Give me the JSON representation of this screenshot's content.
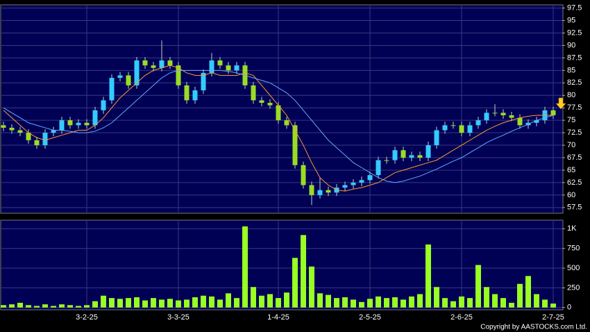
{
  "chart_data": [
    {
      "type": "candlestick",
      "open": [
        74,
        73.5,
        73,
        72.5,
        71,
        70,
        72.5,
        73,
        75,
        74,
        74.5,
        74,
        77,
        79,
        83.5,
        84,
        82,
        87,
        86,
        85.5,
        87,
        86,
        82,
        79,
        81,
        84.5,
        87,
        86,
        85,
        86,
        82,
        79,
        78.5,
        78,
        75,
        74,
        66,
        62,
        60,
        61,
        60.5,
        61.5,
        62,
        62.5,
        63,
        64,
        67,
        67,
        69,
        67.5,
        68,
        67.5,
        70,
        73,
        74,
        74,
        72.5,
        74,
        75,
        76.5,
        76.5,
        76,
        75.5,
        74,
        74.5,
        75,
        77
      ],
      "high": [
        74.7,
        74.2,
        73.7,
        73.2,
        71.7,
        73.2,
        73.7,
        75.7,
        75.7,
        75.2,
        75.2,
        77.7,
        79.7,
        84.2,
        84.7,
        84.7,
        87.7,
        87.7,
        86.7,
        91,
        87.7,
        86.7,
        82.7,
        81.7,
        85.2,
        88.5,
        87.7,
        86.7,
        86.7,
        86.7,
        82.7,
        79.7,
        79.2,
        78.7,
        75.7,
        74.7,
        66.7,
        62.7,
        63.5,
        61.7,
        62.2,
        62.7,
        63.2,
        63.7,
        64.7,
        67.7,
        67.7,
        69.7,
        69.7,
        68.7,
        68.7,
        70.7,
        73.7,
        74.7,
        74.7,
        74.7,
        74.7,
        75.7,
        77.2,
        78.2,
        77.2,
        76.7,
        76.2,
        75.2,
        75.7,
        77.7,
        77.7
      ],
      "low": [
        72.8,
        72.3,
        71.8,
        70.3,
        69.3,
        69.3,
        71.8,
        72.3,
        73.3,
        73.3,
        73.3,
        73.3,
        76.3,
        78.3,
        82.8,
        81.3,
        81.3,
        85.3,
        84.8,
        84.8,
        85.3,
        81.3,
        78.3,
        78.3,
        80.3,
        83.8,
        85.3,
        84.3,
        84.3,
        81.3,
        78.3,
        77.8,
        77.3,
        74.3,
        73.3,
        65.3,
        61.3,
        58,
        59.3,
        59.8,
        59.8,
        60.8,
        61.3,
        61.8,
        62.3,
        63.3,
        66.3,
        66.3,
        66.8,
        66.8,
        66.8,
        66.8,
        69.3,
        72.3,
        73.3,
        71.8,
        71.8,
        73.3,
        74.3,
        75.8,
        75.3,
        74.8,
        73.3,
        73.3,
        73.8,
        74.3,
        75.3
      ],
      "close": [
        73.5,
        73,
        72.5,
        71,
        70,
        72.5,
        73,
        75,
        74,
        74.5,
        74,
        77,
        79,
        83.5,
        84,
        82,
        87,
        86,
        85.5,
        87,
        86,
        82,
        79,
        81,
        84.5,
        87,
        86,
        85,
        86,
        82,
        79,
        78.5,
        78,
        75,
        74,
        66,
        62,
        60,
        61,
        60.5,
        61.5,
        62,
        62.5,
        63,
        64,
        67,
        67,
        69,
        67.5,
        68,
        67.5,
        70,
        73,
        74,
        74,
        72.5,
        74,
        75,
        76.5,
        76.5,
        76,
        75.5,
        74,
        74.5,
        75,
        77,
        76
      ],
      "up_color": "#33ccff",
      "down_color": "#99dd22",
      "series": [
        {
          "color": "#ff9933",
          "values": [
            77,
            75.5,
            74,
            72.5,
            71.5,
            71,
            71.5,
            72,
            72.5,
            73,
            73,
            74,
            75.5,
            77.5,
            79.5,
            81,
            82.5,
            84,
            85,
            85.5,
            86,
            85.5,
            84.5,
            84,
            84,
            84.5,
            84,
            84,
            84,
            84.5,
            84,
            82,
            80,
            78,
            76,
            73,
            70,
            66.5,
            63.5,
            62,
            61,
            60.8,
            61.2,
            61.5,
            62,
            62.5,
            63.5,
            64.5,
            65,
            65.5,
            66,
            66.5,
            67,
            68,
            69,
            70,
            71,
            72,
            73,
            73.8,
            74.5,
            75,
            75.5,
            75.8,
            76,
            76,
            76
          ]
        },
        {
          "color": "#66aaff",
          "values": [
            77.5,
            76.5,
            75.5,
            74.5,
            74,
            73.5,
            73,
            73,
            72.8,
            72.5,
            72.5,
            72.8,
            73.5,
            74.5,
            76,
            77.5,
            79,
            80.5,
            82,
            83.5,
            84.5,
            85,
            85,
            85,
            85,
            85,
            85,
            84.8,
            84.5,
            84,
            83.5,
            83,
            82.5,
            81.5,
            80.5,
            79,
            77,
            75,
            73,
            71,
            69.5,
            68,
            66.5,
            65.5,
            64.5,
            63.5,
            62.8,
            62.5,
            62.8,
            63.3,
            63.8,
            64.5,
            65.2,
            66,
            66.8,
            67.5,
            68.5,
            69.5,
            70.5,
            71.3,
            72,
            72.8,
            73.5,
            74.2,
            75,
            75.5,
            76
          ]
        }
      ],
      "ylim": [
        56.5,
        98
      ],
      "yticks": [
        57.5,
        60,
        62.5,
        65,
        67.5,
        70,
        72.5,
        75,
        77.5,
        80,
        82.5,
        85,
        87.5,
        90,
        92.5,
        95,
        97.5
      ],
      "grid": true
    },
    {
      "type": "bar",
      "x": [
        null,
        null,
        null,
        null,
        null,
        null,
        null,
        null,
        null,
        null,
        "3-2-25",
        null,
        null,
        null,
        null,
        null,
        null,
        null,
        null,
        null,
        null,
        "3-3-25",
        null,
        null,
        null,
        null,
        null,
        null,
        null,
        null,
        null,
        null,
        null,
        "1-4-25",
        null,
        null,
        null,
        null,
        null,
        null,
        null,
        null,
        null,
        null,
        "2-5-25",
        null,
        null,
        null,
        null,
        null,
        null,
        null,
        null,
        null,
        null,
        "2-6-25",
        null,
        null,
        null,
        null,
        null,
        null,
        null,
        null,
        null,
        null,
        "2-7-25"
      ],
      "values": [
        30,
        40,
        60,
        30,
        20,
        40,
        20,
        40,
        30,
        20,
        30,
        80,
        150,
        120,
        110,
        120,
        130,
        90,
        120,
        100,
        110,
        90,
        100,
        130,
        150,
        140,
        100,
        180,
        120,
        1030,
        260,
        150,
        170,
        120,
        190,
        630,
        920,
        520,
        180,
        160,
        120,
        130,
        100,
        70,
        110,
        140,
        120,
        130,
        100,
        140,
        170,
        800,
        260,
        120,
        80,
        140,
        120,
        540,
        260,
        170,
        120,
        60,
        300,
        400,
        170,
        100,
        50
      ],
      "color": "#99ff22",
      "ylim": [
        -20,
        1100
      ],
      "yticks": [
        0,
        250,
        500,
        750,
        {
          "value": 1000,
          "label": "1K"
        }
      ],
      "grid": true
    }
  ],
  "footer": "Copyright by AASTOCKS.com Ltd."
}
